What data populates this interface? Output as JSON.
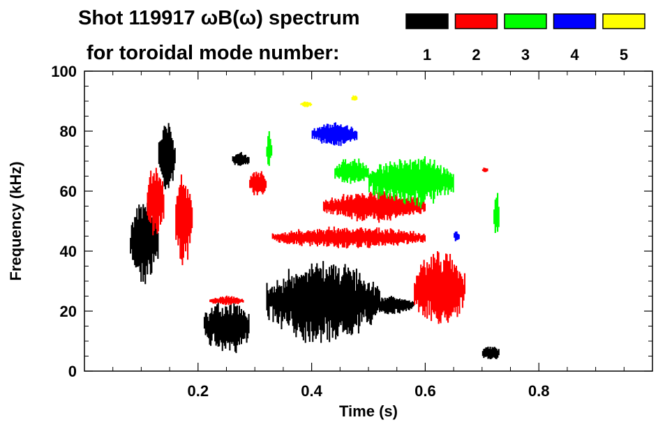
{
  "chart_data": {
    "type": "heatmap",
    "title": "Shot 119917 ωB(ω) spectrum",
    "subtitle": "for toroidal mode number:",
    "xlabel": "Time (s)",
    "ylabel": "Frequency (kHz)",
    "xlim": [
      0,
      1.0
    ],
    "ylim": [
      0,
      100
    ],
    "xticks": [
      0.2,
      0.4,
      0.6,
      0.8
    ],
    "xtick_labels": [
      "0.2",
      "0.4",
      "0.6",
      "0.8"
    ],
    "yticks": [
      0,
      20,
      40,
      60,
      80,
      100
    ],
    "ytick_labels": [
      "0",
      "20",
      "40",
      "60",
      "80",
      "100"
    ],
    "legend": [
      {
        "label": "1",
        "color": "#000000"
      },
      {
        "label": "2",
        "color": "#ff0000"
      },
      {
        "label": "3",
        "color": "#00ff00"
      },
      {
        "label": "4",
        "color": "#0000ff"
      },
      {
        "label": "5",
        "color": "#ffff00"
      }
    ],
    "series": [
      {
        "mode": 1,
        "color": "#000000",
        "regions": [
          {
            "t": [
              0.08,
              0.13
            ],
            "f": [
              30,
              57
            ]
          },
          {
            "t": [
              0.13,
              0.16
            ],
            "f": [
              60,
              83
            ]
          },
          {
            "t": [
              0.21,
              0.29
            ],
            "f": [
              6,
              24
            ]
          },
          {
            "t": [
              0.26,
              0.29
            ],
            "f": [
              68,
              73
            ]
          },
          {
            "t": [
              0.32,
              0.52
            ],
            "f": [
              10,
              36
            ]
          },
          {
            "t": [
              0.5,
              0.58
            ],
            "f": [
              19,
              25
            ]
          },
          {
            "t": [
              0.7,
              0.73
            ],
            "f": [
              3,
              9
            ]
          }
        ]
      },
      {
        "mode": 2,
        "color": "#ff0000",
        "regions": [
          {
            "t": [
              0.11,
              0.14
            ],
            "f": [
              45,
              68
            ]
          },
          {
            "t": [
              0.16,
              0.19
            ],
            "f": [
              35,
              66
            ]
          },
          {
            "t": [
              0.22,
              0.28
            ],
            "f": [
              22,
              25
            ]
          },
          {
            "t": [
              0.29,
              0.32
            ],
            "f": [
              58,
              67
            ]
          },
          {
            "t": [
              0.33,
              0.6
            ],
            "f": [
              41,
              48
            ]
          },
          {
            "t": [
              0.42,
              0.6
            ],
            "f": [
              50,
              60
            ]
          },
          {
            "t": [
              0.58,
              0.67
            ],
            "f": [
              15,
              40
            ]
          },
          {
            "t": [
              0.7,
              0.71
            ],
            "f": [
              66,
              68
            ]
          }
        ]
      },
      {
        "mode": 3,
        "color": "#00ff00",
        "regions": [
          {
            "t": [
              0.32,
              0.33
            ],
            "f": [
              68,
              80
            ]
          },
          {
            "t": [
              0.44,
              0.5
            ],
            "f": [
              62,
              71
            ]
          },
          {
            "t": [
              0.5,
              0.65
            ],
            "f": [
              55,
              72
            ]
          },
          {
            "t": [
              0.72,
              0.73
            ],
            "f": [
              45,
              60
            ]
          }
        ]
      },
      {
        "mode": 4,
        "color": "#0000ff",
        "regions": [
          {
            "t": [
              0.4,
              0.48
            ],
            "f": [
              75,
              83
            ]
          },
          {
            "t": [
              0.65,
              0.66
            ],
            "f": [
              43,
              47
            ]
          }
        ]
      },
      {
        "mode": 5,
        "color": "#ffff00",
        "regions": [
          {
            "t": [
              0.38,
              0.4
            ],
            "f": [
              88,
              90
            ]
          },
          {
            "t": [
              0.47,
              0.48
            ],
            "f": [
              90,
              92
            ]
          }
        ]
      }
    ]
  }
}
